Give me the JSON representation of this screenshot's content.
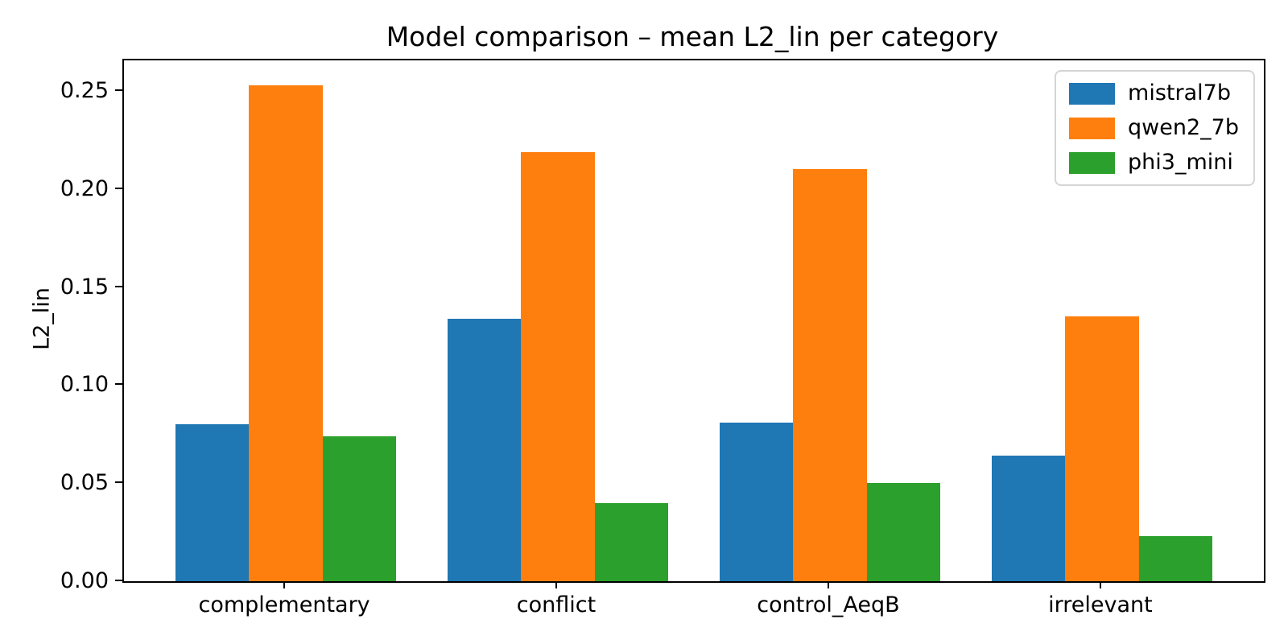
{
  "chart_data": {
    "type": "bar",
    "title": "Model comparison – mean L2_lin per category",
    "xlabel": "",
    "ylabel": "L2_lin",
    "categories": [
      "complementary",
      "conflict",
      "control_AeqB",
      "irrelevant"
    ],
    "series": [
      {
        "name": "mistral7b",
        "color": "#1f77b4",
        "values": [
          0.08,
          0.134,
          0.081,
          0.064
        ]
      },
      {
        "name": "qwen2_7b",
        "color": "#ff7f0e",
        "values": [
          0.253,
          0.219,
          0.21,
          0.135
        ]
      },
      {
        "name": "phi3_mini",
        "color": "#2ca02c",
        "values": [
          0.074,
          0.04,
          0.05,
          0.023
        ]
      }
    ],
    "yticks": [
      "0.00",
      "0.05",
      "0.10",
      "0.15",
      "0.20",
      "0.25"
    ],
    "ylim": [
      0,
      0.2656
    ],
    "grid": false,
    "legend_position": "upper right",
    "bar_width_data_units": 0.27,
    "xlim": [
      -0.595,
      3.595
    ]
  }
}
